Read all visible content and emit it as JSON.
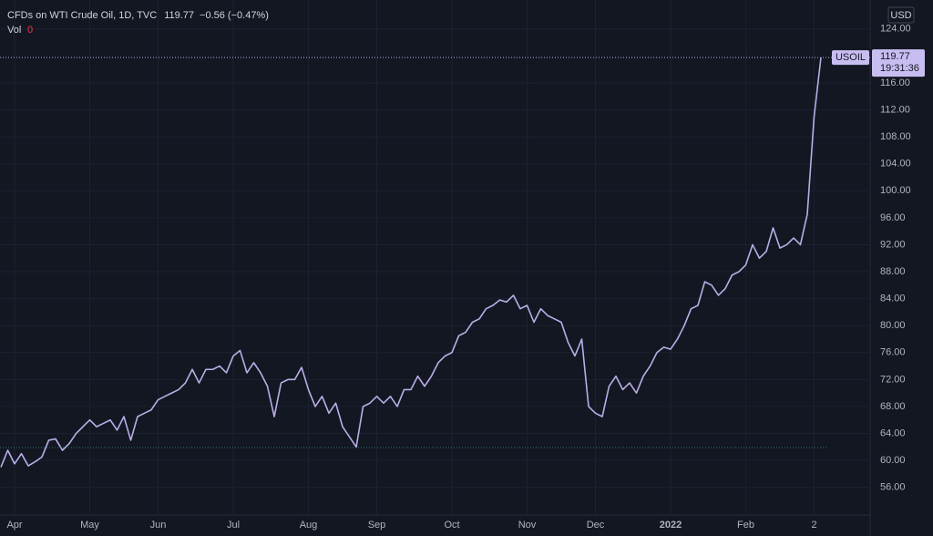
{
  "header": {
    "title": "CFDs on WTI Crude Oil, 1D, TVC",
    "change": "−0.56 (−0.47%)",
    "vol_label": "Vol",
    "vol_value": "0",
    "currency": "USD",
    "symbol": "USOIL",
    "countdown": "19:31:36"
  },
  "chart_data": {
    "type": "line",
    "categories": [
      null,
      null,
      "Apr",
      null,
      null,
      null,
      null,
      null,
      null,
      null,
      null,
      null,
      null,
      "May",
      null,
      null,
      null,
      null,
      null,
      null,
      null,
      null,
      null,
      "Jun",
      null,
      null,
      null,
      null,
      null,
      null,
      null,
      null,
      null,
      null,
      "Jul",
      null,
      null,
      null,
      null,
      null,
      null,
      null,
      null,
      null,
      null,
      "Aug",
      null,
      null,
      null,
      null,
      null,
      null,
      null,
      null,
      null,
      "Sep",
      null,
      null,
      null,
      null,
      null,
      null,
      null,
      null,
      null,
      null,
      "Oct",
      null,
      null,
      null,
      null,
      null,
      null,
      null,
      null,
      null,
      null,
      "Nov",
      null,
      null,
      null,
      null,
      null,
      null,
      null,
      null,
      null,
      "Dec",
      null,
      null,
      null,
      null,
      null,
      null,
      null,
      null,
      null,
      null,
      "2022",
      null,
      null,
      null,
      null,
      null,
      null,
      null,
      null,
      null,
      null,
      "Feb",
      null,
      null,
      null,
      null,
      null,
      null,
      null,
      null,
      null,
      "2",
      null
    ],
    "values": [
      59,
      61.5,
      59.5,
      61,
      59.2,
      59.8,
      60.5,
      63,
      63.2,
      61.5,
      62.5,
      64,
      65,
      66,
      65,
      65.5,
      66,
      64.5,
      66.5,
      63,
      66.5,
      67,
      67.5,
      69,
      69.5,
      70,
      70.5,
      71.5,
      73.5,
      71.5,
      73.5,
      73.5,
      74,
      73,
      75.5,
      76.3,
      73,
      74.5,
      73,
      71,
      66.5,
      71.5,
      72,
      72,
      73.8,
      70.5,
      68,
      69.5,
      67,
      68.5,
      65,
      63.5,
      62,
      68,
      68.5,
      69.5,
      68.5,
      69.5,
      68,
      70.5,
      70.5,
      72.5,
      71,
      72.5,
      74.5,
      75.5,
      76,
      78.5,
      79,
      80.5,
      81,
      82.5,
      83,
      83.8,
      83.5,
      84.5,
      82.5,
      83,
      80.5,
      82.5,
      81.5,
      81,
      80.5,
      77.5,
      75.5,
      78,
      68,
      67,
      66.5,
      71,
      72.5,
      70.5,
      71.5,
      70,
      72.5,
      74,
      76,
      76.8,
      76.5,
      78,
      80,
      82.5,
      83,
      86.5,
      86,
      84.5,
      85.5,
      87.5,
      88,
      89,
      92,
      90,
      91,
      94.5,
      91.5,
      92,
      93,
      92,
      96.5,
      111,
      119.77
    ],
    "color": "#b9aee6",
    "ylim": [
      51.9,
      128.3
    ],
    "yticks": [
      {
        "value": 56,
        "label": "56.00"
      },
      {
        "value": 60,
        "label": "60.00"
      },
      {
        "value": 64,
        "label": "64.00"
      },
      {
        "value": 68,
        "label": "68.00"
      },
      {
        "value": 72,
        "label": "72.00"
      },
      {
        "value": 76,
        "label": "76.00"
      },
      {
        "value": 80,
        "label": "80.00"
      },
      {
        "value": 84,
        "label": "84.00"
      },
      {
        "value": 88,
        "label": "88.00"
      },
      {
        "value": 92,
        "label": "92.00"
      },
      {
        "value": 96,
        "label": "96.00"
      },
      {
        "value": 100,
        "label": "100.00"
      },
      {
        "value": 104,
        "label": "104.00"
      },
      {
        "value": 108,
        "label": "108.00"
      },
      {
        "value": 112,
        "label": "112.00"
      },
      {
        "value": 116,
        "label": "116.00"
      },
      {
        "value": 124,
        "label": "124.00"
      }
    ],
    "grid": true
  }
}
